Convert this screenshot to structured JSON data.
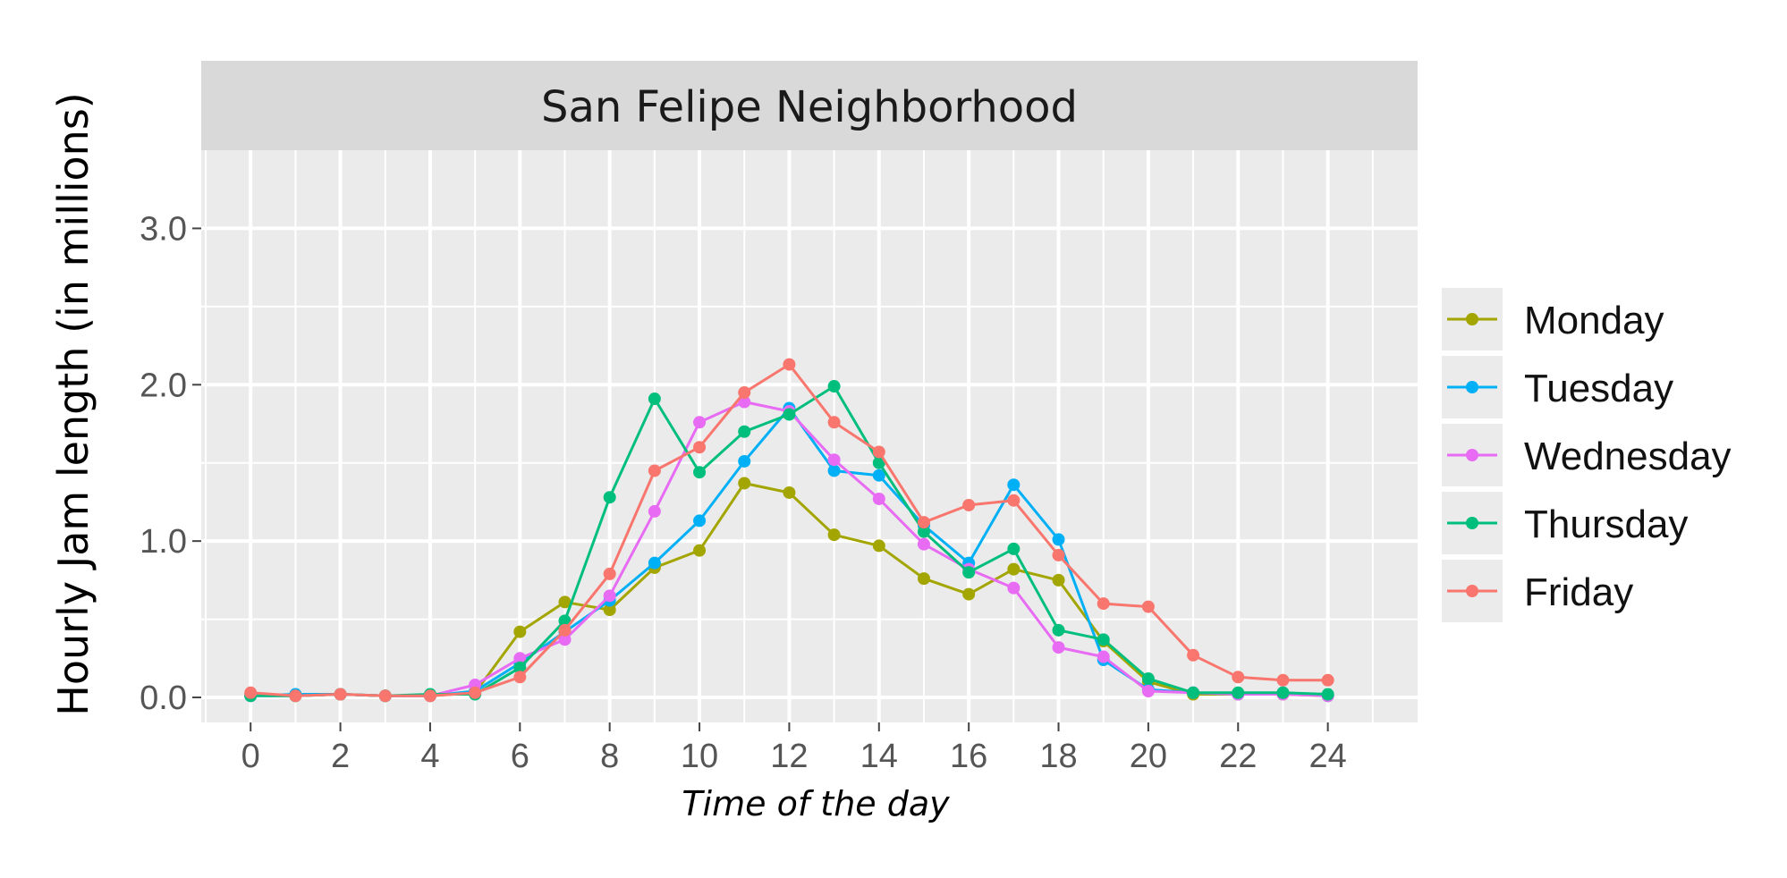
{
  "chart_data": {
    "type": "line",
    "title": "San Felipe Neighborhood",
    "xlabel": "Time of the day",
    "ylabel": "Hourly Jam length (in millions)",
    "xlim": [
      -1.1,
      26
    ],
    "ylim": [
      -0.16,
      3.5
    ],
    "xticks": [
      0,
      2,
      4,
      6,
      8,
      10,
      12,
      14,
      16,
      18,
      20,
      22,
      24
    ],
    "yticks": [
      0.0,
      1.0,
      2.0,
      3.0
    ],
    "ytick_labels": [
      "0.0",
      "1.0",
      "2.0",
      "3.0"
    ],
    "grid": true,
    "legend_position": "right",
    "x": [
      0,
      1,
      2,
      3,
      4,
      5,
      6,
      7,
      8,
      9,
      10,
      11,
      12,
      13,
      14,
      15,
      16,
      17,
      18,
      19,
      20,
      21,
      22,
      23,
      24
    ],
    "series": [
      {
        "name": "Monday",
        "color": "#A3A500",
        "values": [
          0.02,
          0.01,
          0.02,
          0.01,
          0.01,
          0.03,
          0.42,
          0.61,
          0.56,
          0.83,
          0.94,
          1.37,
          1.31,
          1.04,
          0.97,
          0.76,
          0.66,
          0.82,
          0.75,
          0.36,
          0.1,
          0.02,
          0.02,
          0.02,
          0.01
        ]
      },
      {
        "name": "Tuesday",
        "color": "#00B0F6",
        "values": [
          0.01,
          0.02,
          0.02,
          0.01,
          0.01,
          0.04,
          0.22,
          0.42,
          0.62,
          0.86,
          1.13,
          1.51,
          1.85,
          1.45,
          1.42,
          1.1,
          0.86,
          1.36,
          1.01,
          0.24,
          0.05,
          0.03,
          0.02,
          0.03,
          0.01
        ]
      },
      {
        "name": "Wednesday",
        "color": "#E76BF3",
        "values": [
          0.01,
          0.01,
          0.02,
          0.01,
          0.01,
          0.08,
          0.25,
          0.37,
          0.65,
          1.19,
          1.76,
          1.89,
          1.83,
          1.52,
          1.27,
          0.98,
          0.82,
          0.7,
          0.32,
          0.26,
          0.04,
          0.03,
          0.02,
          0.02,
          0.01
        ]
      },
      {
        "name": "Thursday",
        "color": "#00BF7D",
        "values": [
          0.01,
          0.01,
          0.02,
          0.01,
          0.02,
          0.02,
          0.19,
          0.49,
          1.28,
          1.91,
          1.44,
          1.7,
          1.81,
          1.99,
          1.5,
          1.06,
          0.8,
          0.95,
          0.43,
          0.37,
          0.12,
          0.03,
          0.03,
          0.03,
          0.02
        ]
      },
      {
        "name": "Friday",
        "color": "#F8766D",
        "values": [
          0.03,
          0.01,
          0.02,
          0.01,
          0.01,
          0.03,
          0.13,
          0.43,
          0.79,
          1.45,
          1.6,
          1.95,
          2.13,
          1.76,
          1.57,
          1.12,
          1.23,
          1.26,
          0.91,
          0.6,
          0.58,
          0.27,
          0.13,
          0.11,
          0.11
        ]
      }
    ]
  }
}
